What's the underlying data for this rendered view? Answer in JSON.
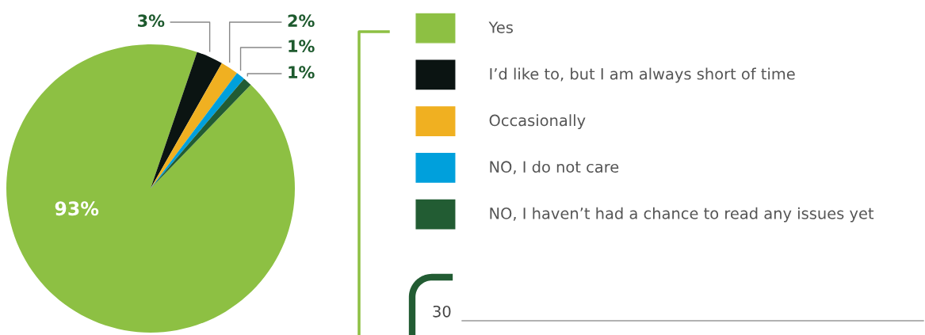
{
  "chart_data": {
    "type": "pie",
    "categories": [
      "Yes",
      "I’d like to, but I am always short of time",
      "Occasionally",
      "NO, I do not care",
      "NO, I haven’t had a chance to read any issues yet"
    ],
    "values": [
      93,
      3,
      2,
      1,
      1
    ],
    "colors": [
      "#8dc043",
      "#0b1412",
      "#f0b021",
      "#00a0dc",
      "#225c33"
    ],
    "value_labels": [
      "93%",
      "3%",
      "2%",
      "1%",
      "1%"
    ],
    "legend": "right",
    "annotations": [
      "30"
    ]
  }
}
